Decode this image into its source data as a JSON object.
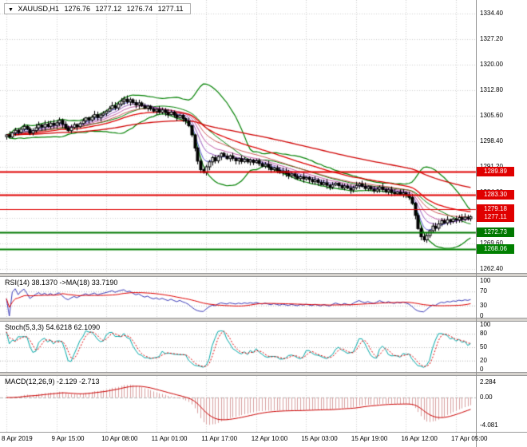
{
  "header": {
    "menu_icon": "▼",
    "symbol_period": "XAUUSD,H1",
    "open": "1276.76",
    "high": "1277.12",
    "low": "1276.74",
    "close": "1277.11"
  },
  "colors": {
    "background": "#FFFFFF",
    "grid": "#CFCFCF",
    "wick": "#000000",
    "bull_body": "#FFFFFF",
    "bear_body": "#000000",
    "bollinger": "#008000",
    "axis_text": "#000000",
    "level_dotted": "#B4B4B4"
  },
  "chart_data": {
    "type": "candlestick",
    "symbol": "XAUUSD",
    "timeframe": "H1",
    "candles_per_label": 17,
    "time_labels": [
      "8 Apr 2019",
      "9 Apr 15:00",
      "10 Apr 08:00",
      "11 Apr 01:00",
      "11 Apr 17:00",
      "12 Apr 10:00",
      "15 Apr 03:00",
      "15 Apr 19:00",
      "16 Apr 12:00",
      "17 Apr 05:00"
    ],
    "price_axis_ticks": [
      "1334.40",
      "1327.20",
      "1320.00",
      "1312.80",
      "1305.60",
      "1298.40",
      "1291.20",
      "1284.00",
      "1276.80",
      "1269.60",
      "1262.40"
    ],
    "price_range": [
      1262.4,
      1334.4
    ],
    "closes": [
      1300.2,
      1299.6,
      1300.8,
      1301.5,
      1300.9,
      1301.8,
      1302.6,
      1301.9,
      1300.7,
      1301.4,
      1302.2,
      1303.0,
      1302.4,
      1303.2,
      1302.6,
      1303.5,
      1302.9,
      1303.6,
      1304.3,
      1303.2,
      1302.1,
      1301.4,
      1302.3,
      1303.1,
      1302.5,
      1303.4,
      1304.2,
      1305.0,
      1304.4,
      1305.2,
      1305.9,
      1305.1,
      1305.8,
      1306.3,
      1306.9,
      1307.6,
      1308.4,
      1307.8,
      1308.9,
      1309.7,
      1310.3,
      1309.5,
      1310.1,
      1309.3,
      1308.6,
      1309.2,
      1308.4,
      1307.7,
      1308.3,
      1307.5,
      1306.9,
      1307.4,
      1306.6,
      1307.2,
      1306.5,
      1305.9,
      1306.6,
      1305.8,
      1305.1,
      1305.7,
      1304.8,
      1304.1,
      1302.8,
      1300.2,
      1296.5,
      1292.8,
      1290.4,
      1289.6,
      1291.2,
      1292.6,
      1293.8,
      1292.9,
      1294.1,
      1295.0,
      1294.2,
      1293.5,
      1294.3,
      1293.6,
      1292.9,
      1293.5,
      1292.7,
      1293.3,
      1292.6,
      1293.1,
      1292.4,
      1292.9,
      1292.1,
      1291.4,
      1291.9,
      1291.1,
      1290.4,
      1290.9,
      1290.2,
      1289.5,
      1290.0,
      1289.3,
      1288.7,
      1289.2,
      1288.5,
      1287.9,
      1288.4,
      1287.8,
      1288.2,
      1287.6,
      1287.0,
      1287.5,
      1286.8,
      1286.2,
      1286.7,
      1286.0,
      1285.5,
      1286.1,
      1286.6,
      1285.9,
      1285.3,
      1285.8,
      1285.2,
      1284.7,
      1285.3,
      1285.9,
      1286.4,
      1285.7,
      1285.1,
      1285.6,
      1284.9,
      1284.4,
      1284.9,
      1285.5,
      1284.8,
      1284.2,
      1284.7,
      1284.0,
      1283.6,
      1284.1,
      1283.5,
      1283.9,
      1283.3,
      1282.6,
      1280.9,
      1277.5,
      1273.8,
      1271.5,
      1270.6,
      1271.8,
      1273.2,
      1274.5,
      1273.9,
      1275.1,
      1276.0,
      1275.4,
      1276.3,
      1275.8,
      1276.5,
      1276.2,
      1276.9,
      1276.4,
      1277.0,
      1276.6,
      1277.11
    ],
    "bollinger": {
      "period": 20,
      "deviation": 2,
      "color": "#008000"
    },
    "fast_mas": [
      {
        "period": 5,
        "color": "#2929C8"
      },
      {
        "period": 9,
        "color": "#7D2EB0"
      },
      {
        "period": 14,
        "color": "#B03090"
      },
      {
        "period": 21,
        "color": "#C03030"
      }
    ],
    "slow_mas": [
      {
        "period": 34,
        "color": "#E00000"
      },
      {
        "period": 96,
        "color": "#D00000"
      }
    ],
    "levels": [
      {
        "label": "1289.89",
        "price": 1289.89,
        "type": "resistance",
        "color": "#E00000",
        "line_width": 2
      },
      {
        "label": "1283.30",
        "price": 1283.3,
        "type": "resistance",
        "color": "#E00000",
        "line_width": 2
      },
      {
        "label": "1279.18",
        "price": 1279.18,
        "type": "resistance",
        "color": "#E00000",
        "line_width": 1
      },
      {
        "label": "1272.73",
        "price": 1272.73,
        "type": "support",
        "color": "#007800",
        "line_width": 2
      },
      {
        "label": "1268.06",
        "price": 1268.06,
        "type": "support",
        "color": "#008000",
        "line_width": 2
      }
    ],
    "current_price": {
      "label": "1277.11",
      "price": 1277.11,
      "color": "#E00000"
    },
    "panes": [
      {
        "id": "rsi",
        "title": "RSI(14) 38.1370 ->MA(18) 33.7190",
        "params": {
          "period": 14,
          "ma_period": 18
        },
        "ticks": [
          "100",
          "70",
          "30",
          "0"
        ],
        "range": [
          0,
          100
        ],
        "level_lines": [
          70,
          30
        ],
        "colors": {
          "main": "#3939B8",
          "signal": "#E00000"
        }
      },
      {
        "id": "stochastic",
        "title": "Stoch(5,3,3) 54.6218 62.1090",
        "params": {
          "k": 5,
          "d": 3,
          "slowing": 3
        },
        "ticks": [
          "100",
          "80",
          "50",
          "20",
          "0"
        ],
        "range": [
          0,
          100
        ],
        "level_lines": [
          80,
          50,
          20
        ],
        "colors": {
          "k_line": "#00A8A8",
          "d_line": "#E00000"
        }
      },
      {
        "id": "macd",
        "title": "MACD(12,26,9) -2.129 -2.713",
        "params": {
          "fast": 12,
          "slow": 26,
          "signal": 9
        },
        "ticks": [
          "2.284",
          "0.00",
          "-4.081"
        ],
        "range": [
          -4.6,
          2.7
        ],
        "level_lines": [
          0
        ],
        "colors": {
          "histogram": "#D8A0A0",
          "signal": "#CC0000"
        }
      }
    ]
  }
}
